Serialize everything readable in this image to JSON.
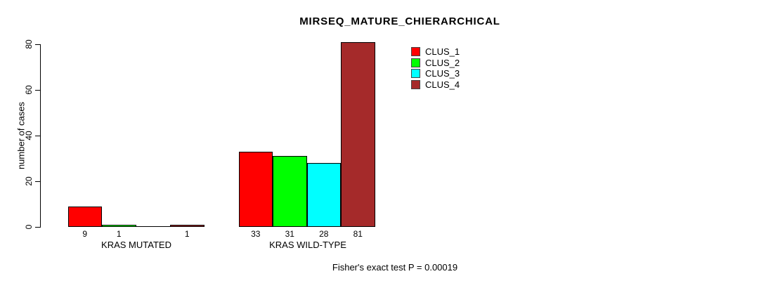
{
  "chart_data": {
    "type": "bar",
    "title": "MIRSEQ_MATURE_CHIERARCHICAL",
    "xlabel": "",
    "ylabel": "number of cases",
    "ylim": [
      0,
      80
    ],
    "yticks": [
      "0",
      "20",
      "40",
      "60",
      "80"
    ],
    "grid": false,
    "legend_position": "top-right",
    "categories": [
      "KRAS MUTATED",
      "KRAS WILD-TYPE"
    ],
    "series": [
      {
        "name": "CLUS_1",
        "color": "#FF0000",
        "values": [
          9,
          33
        ]
      },
      {
        "name": "CLUS_2",
        "color": "#00FF00",
        "values": [
          1,
          31
        ]
      },
      {
        "name": "CLUS_3",
        "color": "#00FFFF",
        "values": [
          0,
          28
        ]
      },
      {
        "name": "CLUS_4",
        "color": "#A52A2A",
        "values": [
          1,
          81
        ]
      }
    ],
    "bar_labels": [
      [
        "9",
        "1",
        "",
        "1"
      ],
      [
        "33",
        "31",
        "28",
        "81"
      ]
    ],
    "annotation": "Fisher's exact test P = 0.00019"
  },
  "colors": {
    "background": "#FFFFFF",
    "axis": "#000000",
    "text": "#000000"
  }
}
